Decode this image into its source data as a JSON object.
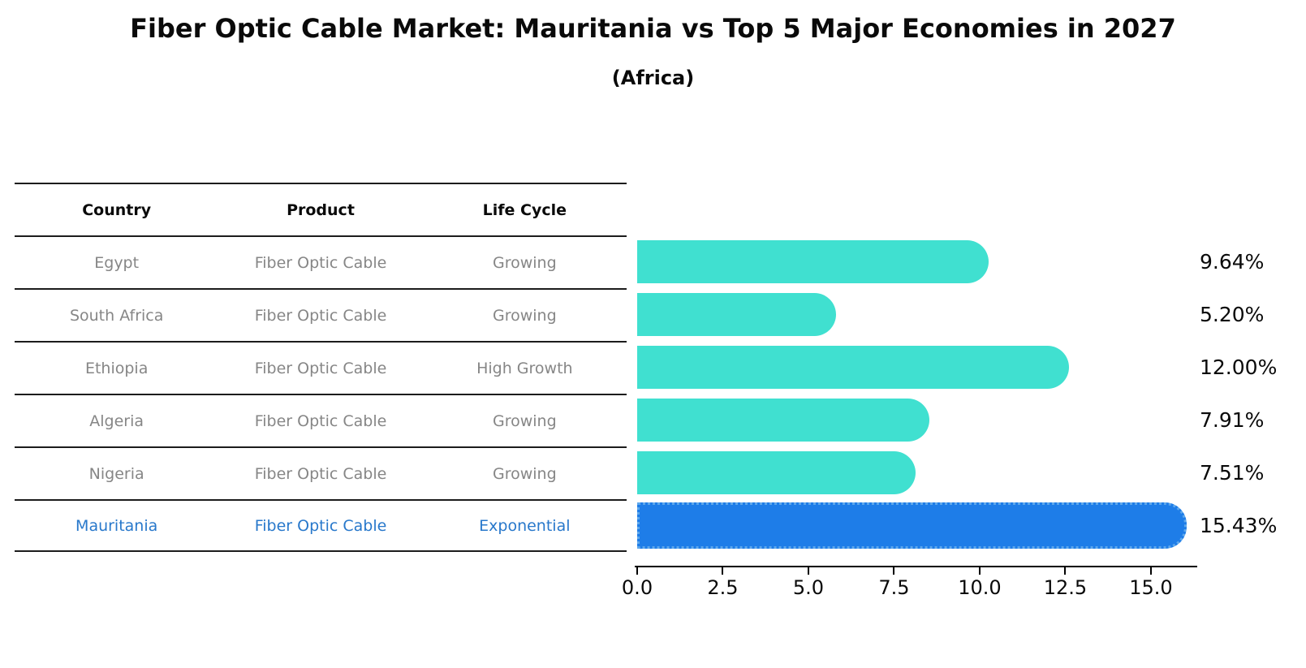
{
  "title": "Fiber Optic Cable Market: Mauritania vs Top 5 Major Economies in 2027",
  "subtitle": "(Africa)",
  "table": {
    "headers": [
      "Country",
      "Product",
      "Life Cycle"
    ],
    "rows": [
      {
        "country": "Egypt",
        "product": "Fiber Optic Cable",
        "life_cycle": "Growing",
        "highlight": false
      },
      {
        "country": "South Africa",
        "product": "Fiber Optic Cable",
        "life_cycle": "Growing",
        "highlight": false
      },
      {
        "country": "Ethiopia",
        "product": "Fiber Optic Cable",
        "life_cycle": "High Growth",
        "highlight": false
      },
      {
        "country": "Algeria",
        "product": "Fiber Optic Cable",
        "life_cycle": "Growing",
        "highlight": false
      },
      {
        "country": "Nigeria",
        "product": "Fiber Optic Cable",
        "life_cycle": "Growing",
        "highlight": false
      },
      {
        "country": "Mauritania",
        "product": "Fiber Optic Cable",
        "life_cycle": "Exponential",
        "highlight": true
      }
    ]
  },
  "chart_data": {
    "type": "bar",
    "orientation": "horizontal",
    "title": "Fiber Optic Cable Market: Mauritania vs Top 5 Major Economies in 2027",
    "subtitle": "(Africa)",
    "categories": [
      "Egypt",
      "South Africa",
      "Ethiopia",
      "Algeria",
      "Nigeria",
      "Mauritania"
    ],
    "values": [
      9.64,
      5.2,
      12.0,
      7.91,
      7.51,
      15.43
    ],
    "value_labels": [
      "9.64%",
      "5.20%",
      "12.00%",
      "7.91%",
      "7.51%",
      "15.43%"
    ],
    "highlight_index": 5,
    "xlim": [
      0,
      16.28
    ],
    "xticks": [
      0.0,
      2.5,
      5.0,
      7.5,
      10.0,
      12.5,
      15.0
    ],
    "xtick_labels": [
      "0.0",
      "2.5",
      "5.0",
      "7.5",
      "10.0",
      "12.5",
      "15.0"
    ],
    "grid": false,
    "legend": false,
    "xlabel": "",
    "ylabel": ""
  },
  "colors": {
    "bar_default": "#40E0D0",
    "bar_highlight": "#1E7DE8",
    "bar_highlight_border": "#5fa8ec",
    "highlight_text": "#2878CB",
    "row_text": "#868686",
    "header_text": "#0a0a0a",
    "axis": "#000000"
  }
}
